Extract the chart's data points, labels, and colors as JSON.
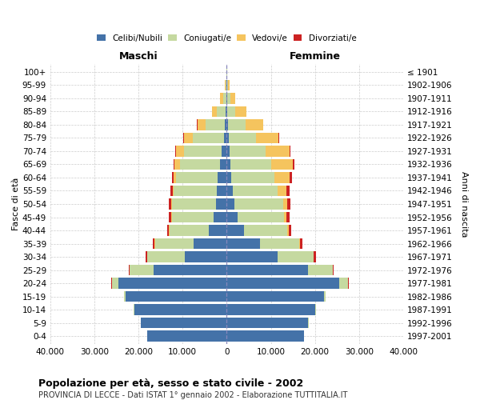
{
  "age_groups": [
    "0-4",
    "5-9",
    "10-14",
    "15-19",
    "20-24",
    "25-29",
    "30-34",
    "35-39",
    "40-44",
    "45-49",
    "50-54",
    "55-59",
    "60-64",
    "65-69",
    "70-74",
    "75-79",
    "80-84",
    "85-89",
    "90-94",
    "95-99",
    "100+"
  ],
  "birth_years": [
    "1997-2001",
    "1992-1996",
    "1987-1991",
    "1982-1986",
    "1977-1981",
    "1972-1976",
    "1967-1971",
    "1962-1966",
    "1957-1961",
    "1952-1956",
    "1947-1951",
    "1942-1946",
    "1937-1941",
    "1932-1936",
    "1927-1931",
    "1922-1926",
    "1917-1921",
    "1912-1916",
    "1907-1911",
    "1902-1906",
    "≤ 1901"
  ],
  "male": {
    "celibi": [
      18000,
      19500,
      21000,
      23000,
      24500,
      16500,
      9500,
      7500,
      4000,
      3000,
      2500,
      2200,
      2000,
      1600,
      1200,
      700,
      350,
      180,
      80,
      30,
      10
    ],
    "coniugati": [
      20,
      50,
      100,
      300,
      1500,
      5500,
      8500,
      8800,
      9000,
      9500,
      10000,
      9800,
      9500,
      9000,
      8500,
      7000,
      4500,
      2000,
      800,
      200,
      80
    ],
    "vedovi": [
      0,
      0,
      1,
      2,
      5,
      10,
      20,
      30,
      50,
      80,
      150,
      300,
      600,
      1200,
      1800,
      2000,
      1800,
      1200,
      600,
      200,
      50
    ],
    "divorziati": [
      2,
      5,
      10,
      50,
      100,
      250,
      350,
      450,
      500,
      550,
      550,
      450,
      350,
      250,
      130,
      90,
      60,
      35,
      15,
      8,
      3
    ]
  },
  "female": {
    "nubili": [
      17500,
      18500,
      20000,
      22000,
      25500,
      18500,
      11500,
      7500,
      4000,
      2500,
      1800,
      1400,
      1000,
      800,
      600,
      400,
      200,
      120,
      60,
      25,
      8
    ],
    "coniugate": [
      20,
      50,
      150,
      400,
      2000,
      5500,
      8200,
      9000,
      9800,
      10500,
      11000,
      10200,
      9800,
      9200,
      8200,
      6200,
      4000,
      1800,
      700,
      200,
      70
    ],
    "vedove": [
      0,
      1,
      2,
      5,
      20,
      40,
      80,
      150,
      250,
      500,
      1000,
      2000,
      3500,
      5000,
      5500,
      5200,
      4000,
      2500,
      1200,
      400,
      100
    ],
    "divorziate": [
      2,
      5,
      10,
      50,
      100,
      230,
      380,
      480,
      530,
      680,
      720,
      640,
      420,
      280,
      170,
      110,
      65,
      40,
      20,
      8,
      3
    ]
  },
  "colors": {
    "celibi": "#4472a8",
    "coniugati": "#c5d9a0",
    "vedovi": "#f5c45e",
    "divorziati": "#cc2222"
  },
  "xlim": 40000,
  "title": "Popolazione per età, sesso e stato civile - 2002",
  "subtitle": "PROVINCIA DI LECCE - Dati ISTAT 1° gennaio 2002 - Elaborazione TUTTITALIA.IT",
  "ylabel_left": "Fasce di età",
  "ylabel_right": "Anni di nascita",
  "xlabel_maschi": "Maschi",
  "xlabel_femmine": "Femmine",
  "legend_labels": [
    "Celibi/Nubili",
    "Coniugati/e",
    "Vedovi/e",
    "Divorziati/e"
  ],
  "xtick_labels": [
    "40.000",
    "30.000",
    "20.000",
    "10.000",
    "0",
    "10.000",
    "20.000",
    "30.000",
    "40.000"
  ],
  "xtick_values": [
    -40000,
    -30000,
    -20000,
    -10000,
    0,
    10000,
    20000,
    30000,
    40000
  ]
}
